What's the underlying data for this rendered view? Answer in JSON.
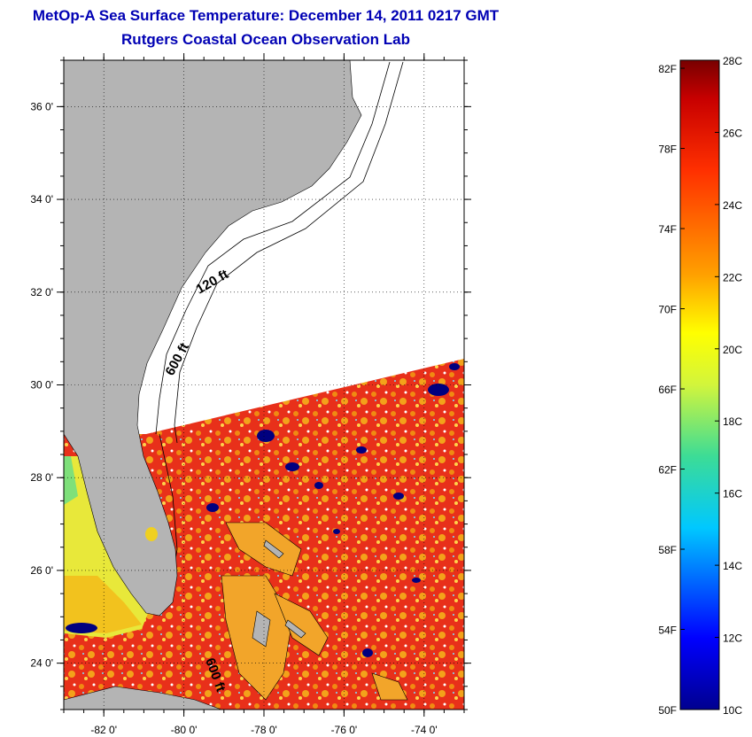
{
  "title": {
    "line1": "MetOp-A Sea Surface Temperature:  December 14, 2011 0217 GMT",
    "line2": "Rutgers Coastal Ocean Observation Lab"
  },
  "map": {
    "lon_range": [
      -83,
      -73
    ],
    "lat_range": [
      23,
      37
    ],
    "lat_ticks": [
      {
        "value": 36,
        "label": "36 0'"
      },
      {
        "value": 34,
        "label": "34 0'"
      },
      {
        "value": 32,
        "label": "32 0'"
      },
      {
        "value": 30,
        "label": "30 0'"
      },
      {
        "value": 28,
        "label": "28 0'"
      },
      {
        "value": 26,
        "label": "26 0'"
      },
      {
        "value": 24,
        "label": "24 0'"
      }
    ],
    "lon_ticks": [
      {
        "value": -82,
        "label": "-82 0'"
      },
      {
        "value": -80,
        "label": "-80 0'"
      },
      {
        "value": -78,
        "label": "-78 0'"
      },
      {
        "value": -76,
        "label": "-76 0'"
      },
      {
        "value": -74,
        "label": "-74 0'"
      }
    ],
    "contour_labels": [
      "120 ft",
      "600 ft",
      "600 ft"
    ],
    "colors": {
      "land": "#b4b4b4",
      "ocean_warm": "#e8301a",
      "ocean_mid": "#f08a12",
      "cloud": "#00007f"
    }
  },
  "colorbar": {
    "min_c": 10,
    "max_c": 28,
    "f_labels": [
      "82F",
      "78F",
      "74F",
      "70F",
      "66F",
      "62F",
      "58F",
      "54F",
      "50F"
    ],
    "c_labels": [
      "28C",
      "26C",
      "24C",
      "22C",
      "20C",
      "18C",
      "16C",
      "14C",
      "12C",
      "10C"
    ]
  }
}
